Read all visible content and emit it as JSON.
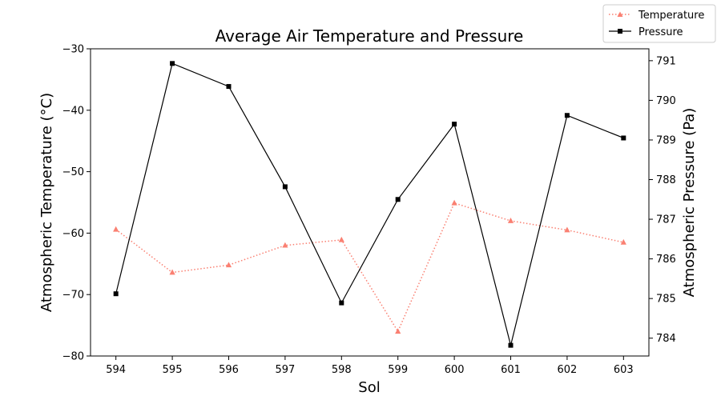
{
  "chart_data": {
    "type": "line",
    "title": "Average Air Temperature and Pressure",
    "xlabel": "Sol",
    "ylabel_left": "Atmospheric Temperature (°C)",
    "ylabel_right": "Atmospheric Pressure (Pa)",
    "x": [
      594,
      595,
      596,
      597,
      598,
      599,
      600,
      601,
      602,
      603
    ],
    "xlim": [
      593.55,
      603.45
    ],
    "ylim_left": [
      -80,
      -30
    ],
    "ylim_right": [
      783.55,
      791.3
    ],
    "yticks_left": [
      -80,
      -70,
      -60,
      -50,
      -40,
      -30
    ],
    "yticks_right": [
      784,
      785,
      786,
      787,
      788,
      789,
      790,
      791
    ],
    "legend_position": "top-right",
    "grid": false,
    "series": [
      {
        "name": "Temperature",
        "axis": "left",
        "color": "#fa8072",
        "line_style": "dotted",
        "marker": "triangle",
        "values": [
          -59.4,
          -66.4,
          -65.2,
          -62.0,
          -61.1,
          -76.0,
          -55.1,
          -58.0,
          -59.5,
          -61.5
        ]
      },
      {
        "name": "Pressure",
        "axis": "right",
        "color": "#000000",
        "line_style": "solid",
        "marker": "square",
        "values": [
          785.12,
          790.93,
          790.35,
          787.82,
          784.89,
          787.5,
          789.4,
          783.82,
          789.62,
          789.05
        ]
      }
    ]
  }
}
